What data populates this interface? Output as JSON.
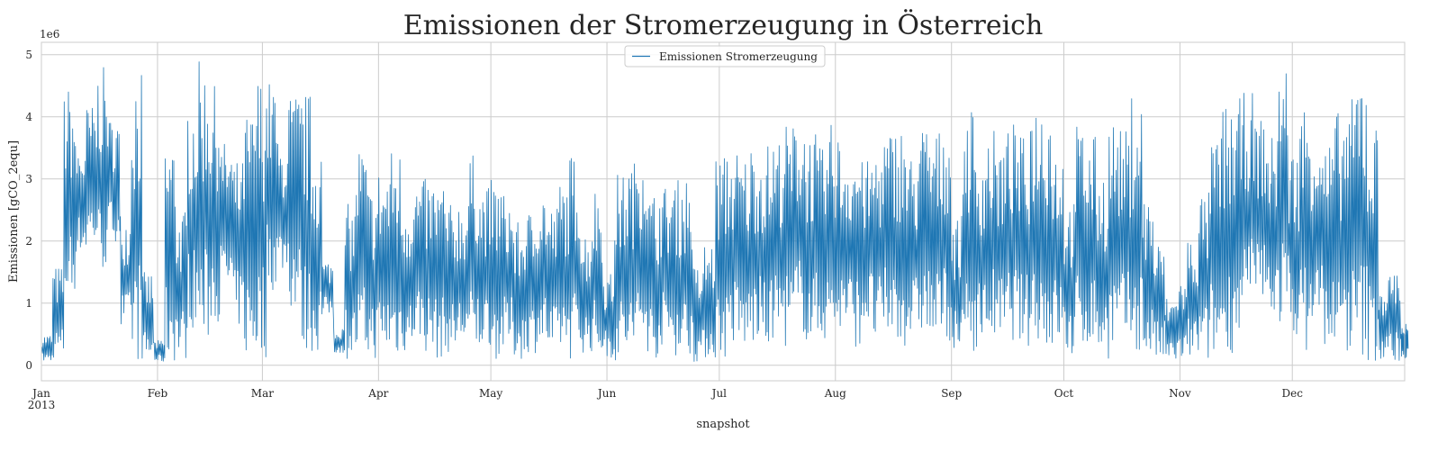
{
  "chart_data": {
    "type": "line",
    "title": "Emissionen der Stromerzeugung in Österreich",
    "xlabel": "snapshot",
    "ylabel": "Emissionen [gCO_2equ]",
    "y_offset_label": "1e6",
    "y_scale": 1000000,
    "ylim": [
      -250000,
      5200000
    ],
    "yticks": [
      0,
      1000000,
      2000000,
      3000000,
      4000000,
      5000000
    ],
    "ytick_labels": [
      "0",
      "1",
      "2",
      "3",
      "4",
      "5"
    ],
    "xlim": [
      "2013-01-01",
      "2013-12-31"
    ],
    "xticks": [
      {
        "date": "2013-01-01",
        "label": "Jan",
        "sublabel": "2013"
      },
      {
        "date": "2013-02-01",
        "label": "Feb"
      },
      {
        "date": "2013-03-01",
        "label": "Mar"
      },
      {
        "date": "2013-04-01",
        "label": "Apr"
      },
      {
        "date": "2013-05-01",
        "label": "May"
      },
      {
        "date": "2013-06-01",
        "label": "Jun"
      },
      {
        "date": "2013-07-01",
        "label": "Jul"
      },
      {
        "date": "2013-08-01",
        "label": "Aug"
      },
      {
        "date": "2013-09-01",
        "label": "Sep"
      },
      {
        "date": "2013-10-01",
        "label": "Oct"
      },
      {
        "date": "2013-11-01",
        "label": "Nov"
      },
      {
        "date": "2013-12-01",
        "label": "Dec"
      }
    ],
    "grid": true,
    "legend_position": "top-center",
    "series": [
      {
        "name": "Emissionen Stromerzeugung",
        "color": "#1f77b4",
        "resolution": "daily summary (min / max)",
        "x": [
          "2013-01-01",
          "2013-01-04",
          "2013-01-07",
          "2013-01-10",
          "2013-01-13",
          "2013-01-16",
          "2013-01-19",
          "2013-01-22",
          "2013-01-25",
          "2013-01-28",
          "2013-01-31",
          "2013-02-03",
          "2013-02-06",
          "2013-02-09",
          "2013-02-12",
          "2013-02-15",
          "2013-02-18",
          "2013-02-21",
          "2013-02-24",
          "2013-02-27",
          "2013-03-02",
          "2013-03-05",
          "2013-03-08",
          "2013-03-11",
          "2013-03-14",
          "2013-03-17",
          "2013-03-20",
          "2013-03-23",
          "2013-03-26",
          "2013-03-29",
          "2013-04-01",
          "2013-04-04",
          "2013-04-07",
          "2013-04-10",
          "2013-04-13",
          "2013-04-16",
          "2013-04-19",
          "2013-04-22",
          "2013-04-25",
          "2013-04-28",
          "2013-05-01",
          "2013-05-04",
          "2013-05-07",
          "2013-05-10",
          "2013-05-13",
          "2013-05-16",
          "2013-05-19",
          "2013-05-22",
          "2013-05-25",
          "2013-05-28",
          "2013-05-31",
          "2013-06-03",
          "2013-06-06",
          "2013-06-09",
          "2013-06-12",
          "2013-06-15",
          "2013-06-18",
          "2013-06-21",
          "2013-06-24",
          "2013-06-27",
          "2013-06-30",
          "2013-07-03",
          "2013-07-06",
          "2013-07-09",
          "2013-07-12",
          "2013-07-15",
          "2013-07-18",
          "2013-07-21",
          "2013-07-24",
          "2013-07-27",
          "2013-07-30",
          "2013-08-02",
          "2013-08-05",
          "2013-08-08",
          "2013-08-11",
          "2013-08-14",
          "2013-08-17",
          "2013-08-20",
          "2013-08-23",
          "2013-08-26",
          "2013-08-29",
          "2013-09-01",
          "2013-09-04",
          "2013-09-07",
          "2013-09-10",
          "2013-09-13",
          "2013-09-16",
          "2013-09-19",
          "2013-09-22",
          "2013-09-25",
          "2013-09-28",
          "2013-10-01",
          "2013-10-04",
          "2013-10-07",
          "2013-10-10",
          "2013-10-13",
          "2013-10-16",
          "2013-10-19",
          "2013-10-22",
          "2013-10-25",
          "2013-10-28",
          "2013-10-31",
          "2013-11-03",
          "2013-11-06",
          "2013-11-09",
          "2013-11-12",
          "2013-11-15",
          "2013-11-18",
          "2013-11-21",
          "2013-11-24",
          "2013-11-27",
          "2013-11-30",
          "2013-12-03",
          "2013-12-06",
          "2013-12-09",
          "2013-12-12",
          "2013-12-15",
          "2013-12-18",
          "2013-12-21",
          "2013-12-24",
          "2013-12-27",
          "2013-12-30"
        ],
        "y_min": [
          50000,
          100000,
          1000000,
          1800000,
          1900000,
          1500000,
          2000000,
          500000,
          50000,
          50000,
          50000,
          50000,
          100000,
          600000,
          300000,
          700000,
          1100000,
          600000,
          100000,
          100000,
          1200000,
          1500000,
          900000,
          200000,
          200000,
          800000,
          200000,
          100000,
          50000,
          100000,
          150000,
          100000,
          200000,
          400000,
          200000,
          100000,
          200000,
          300000,
          100000,
          300000,
          100000,
          200000,
          100000,
          200000,
          300000,
          100000,
          200000,
          100000,
          200000,
          100000,
          100000,
          50000,
          100000,
          200000,
          100000,
          300000,
          150000,
          100000,
          50000,
          100000,
          100000,
          300000,
          200000,
          300000,
          200000,
          400000,
          300000,
          500000,
          300000,
          400000,
          400000,
          500000,
          300000,
          600000,
          300000,
          400000,
          300000,
          400000,
          500000,
          300000,
          400000,
          100000,
          200000,
          300000,
          400000,
          300000,
          400000,
          300000,
          400000,
          200000,
          300000,
          100000,
          200000,
          300000,
          100000,
          200000,
          300000,
          200000,
          100000,
          50000,
          50000,
          50000,
          100000,
          50000,
          100000,
          200000,
          400000,
          800000,
          1000000,
          800000,
          600000,
          500000,
          200000,
          600000,
          300000,
          100000,
          200000,
          50000,
          50000,
          50000,
          50000,
          50000
        ],
        "y_max": [
          500000,
          1600000,
          4500000,
          3600000,
          4200000,
          4800000,
          4000000,
          2500000,
          4900000,
          1500000,
          400000,
          3700000,
          2500000,
          4400000,
          4900000,
          4500000,
          3600000,
          3300000,
          4100000,
          4700000,
          4600000,
          3600000,
          4400000,
          4400000,
          3700000,
          1700000,
          600000,
          2600000,
          3600000,
          2900000,
          3200000,
          3500000,
          2800000,
          3000000,
          3000000,
          3000000,
          2600000,
          2700000,
          3400000,
          2900000,
          3000000,
          2800000,
          2300000,
          2500000,
          2900000,
          2600000,
          3000000,
          3400000,
          2200000,
          2900000,
          1500000,
          3100000,
          3300000,
          3800000,
          2800000,
          2900000,
          3000000,
          3100000,
          1600000,
          2000000,
          3400000,
          3500000,
          3400000,
          3600000,
          3600000,
          3700000,
          3900000,
          4100000,
          3800000,
          3500000,
          3900000,
          3600000,
          3600000,
          3300000,
          3600000,
          3800000,
          3900000,
          3400000,
          3900000,
          3800000,
          4000000,
          2400000,
          4200000,
          3500000,
          3800000,
          3600000,
          3900000,
          3700000,
          4300000,
          4400000,
          3600000,
          2700000,
          3900000,
          3700000,
          3200000,
          4000000,
          3800000,
          4400000,
          2800000,
          2000000,
          1100000,
          1400000,
          2100000,
          2800000,
          3700000,
          4200000,
          4300000,
          4400000,
          4000000,
          3700000,
          4900000,
          3500000,
          4300000,
          4000000,
          3600000,
          4100000,
          4300000,
          4900000,
          3900000,
          1400000,
          1600000,
          700000
        ]
      }
    ]
  }
}
